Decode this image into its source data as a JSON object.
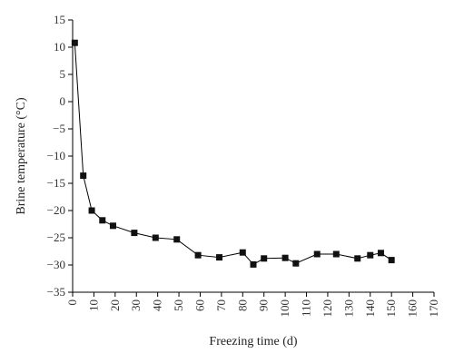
{
  "chart_data": {
    "type": "line",
    "xlabel": "Freezing time (d)",
    "ylabel": "Brine temperature (°C)",
    "xlim": [
      0,
      170
    ],
    "ylim": [
      -35,
      15
    ],
    "x_ticks": [
      0,
      10,
      20,
      30,
      40,
      50,
      60,
      70,
      80,
      90,
      100,
      110,
      120,
      130,
      140,
      150,
      160,
      170
    ],
    "y_ticks": [
      15,
      10,
      5,
      0,
      -5,
      -10,
      -15,
      -20,
      -25,
      -30,
      -35
    ],
    "grid": false,
    "marker": "square",
    "series": [
      {
        "x": [
          1,
          5,
          9,
          14,
          19,
          29,
          39,
          49,
          59,
          69,
          80,
          85,
          90,
          100,
          105,
          115,
          124,
          134,
          140,
          145,
          150
        ],
        "y": [
          10.8,
          -13.6,
          -20.0,
          -21.8,
          -22.8,
          -24.1,
          -25.0,
          -25.3,
          -28.2,
          -28.6,
          -27.7,
          -29.9,
          -28.8,
          -28.7,
          -29.7,
          -28.0,
          -28.0,
          -28.8,
          -28.2,
          -27.8,
          -29.1
        ]
      }
    ],
    "colors": {
      "line": "#000000",
      "marker": "#111111",
      "axis": "#000000"
    }
  }
}
